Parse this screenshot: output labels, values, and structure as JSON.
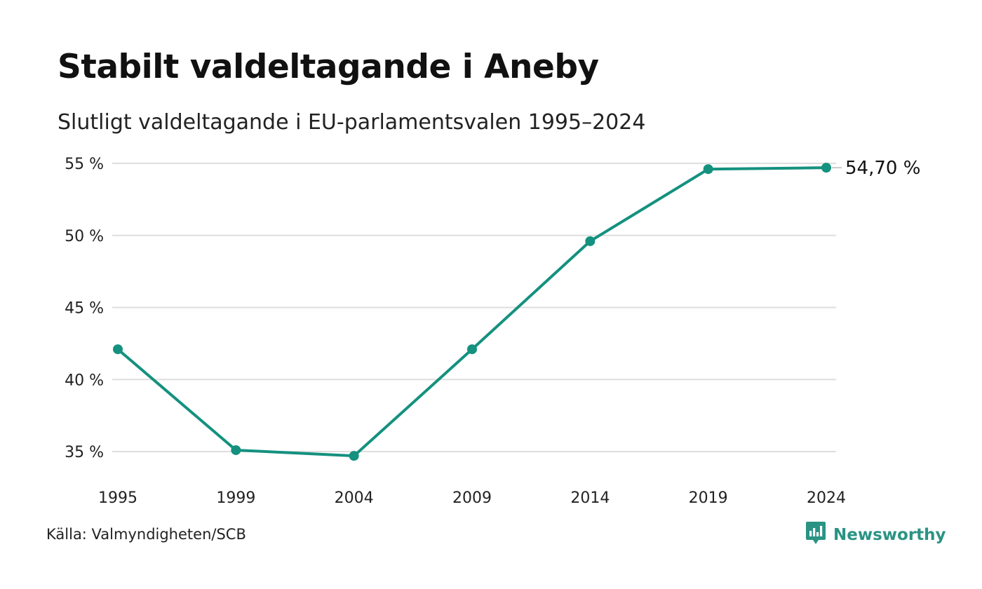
{
  "title": "Stabilt valdeltagande i Aneby",
  "subtitle": "Slutligt valdeltagande i EU-parlamentsvalen 1995–2024",
  "source": "Källa: Valmyndigheten/SCB",
  "brand": {
    "name": "Newsworthy",
    "icon": "newsworthy-logo-icon",
    "color": "#2a9384"
  },
  "colors": {
    "line": "#14917f",
    "grid": "#dedede"
  },
  "chart_data": {
    "type": "line",
    "categories": [
      "1995",
      "1999",
      "2004",
      "2009",
      "2014",
      "2019",
      "2024"
    ],
    "series": [
      {
        "values": [
          42.1,
          35.1,
          34.7,
          42.1,
          49.6,
          54.6,
          54.7
        ]
      }
    ],
    "ylim": [
      35,
      55
    ],
    "yticks": [
      35,
      40,
      45,
      50,
      55
    ],
    "ytick_labels": [
      "35 %",
      "40 %",
      "45 %",
      "50 %",
      "55 %"
    ],
    "grid": true,
    "end_label": "54,70 %"
  }
}
